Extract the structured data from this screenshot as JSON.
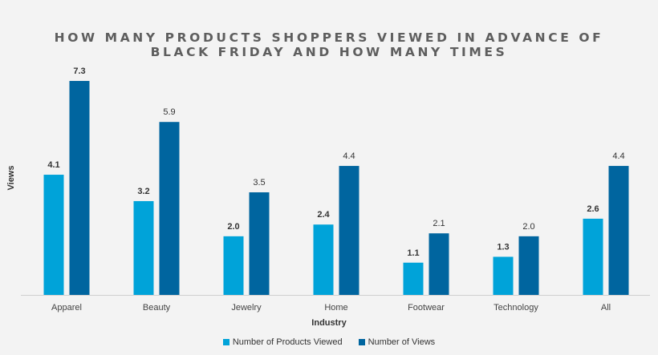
{
  "chart_data": {
    "type": "bar",
    "title": "How many products shoppers viewed in advance of Black Friday and how many times",
    "xlabel": "Industry",
    "ylabel": "Views",
    "categories": [
      "Apparel",
      "Beauty",
      "Jewelry",
      "Home",
      "Footwear",
      "Technology",
      "All"
    ],
    "series": [
      {
        "name": "Number of Products Viewed",
        "color": "#00a3d9",
        "values": [
          4.1,
          3.2,
          2.0,
          2.4,
          1.1,
          1.3,
          2.6
        ],
        "labels": [
          "4.1",
          "3.2",
          "2.0",
          "2.4",
          "1.1",
          "1.3",
          "2.6"
        ]
      },
      {
        "name": "Number of Views",
        "color": "#00659f",
        "values": [
          7.3,
          5.9,
          3.5,
          4.4,
          2.1,
          2.0,
          4.4
        ],
        "labels": [
          "7.3",
          "5.9",
          "3.5",
          "4.4",
          "2.1",
          "2.0",
          "4.4"
        ]
      }
    ],
    "ylim": [
      0,
      7.3
    ],
    "grid": false,
    "legend_position": "bottom"
  }
}
